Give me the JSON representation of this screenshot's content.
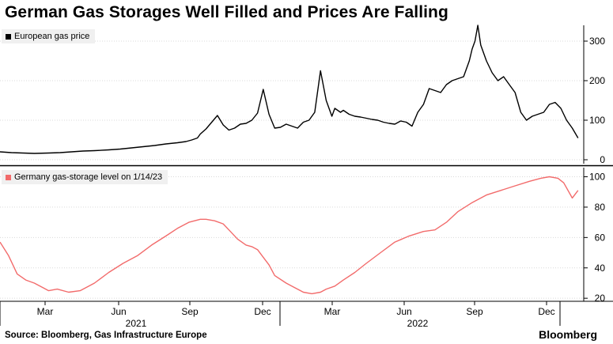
{
  "title": "German Gas Storages Well Filled and Prices Are Falling",
  "source": "Source: Bloomberg, Gas Infrastructure Europe",
  "brand": "Bloomberg",
  "colors": {
    "price_line": "#000000",
    "storage_line": "#f26b6b",
    "grid": "#d9d9d9"
  },
  "x_axis": {
    "months": [
      "Mar",
      "Jun",
      "Sep",
      "Dec",
      "Mar",
      "Jun",
      "Sep",
      "Dec"
    ],
    "years": [
      "2021",
      "2022"
    ]
  },
  "chart_data": [
    {
      "type": "line",
      "legend": "European gas price",
      "xlim": [
        2021.0,
        2023.04
      ],
      "ylim": [
        -10,
        340
      ],
      "yticks": [
        0,
        100,
        200,
        300
      ],
      "x": [
        2021.0,
        2021.04,
        2021.08,
        2021.12,
        2021.17,
        2021.21,
        2021.25,
        2021.29,
        2021.33,
        2021.38,
        2021.42,
        2021.46,
        2021.5,
        2021.54,
        2021.58,
        2021.62,
        2021.65,
        2021.67,
        2021.69,
        2021.7,
        2021.72,
        2021.74,
        2021.76,
        2021.78,
        2021.8,
        2021.82,
        2021.84,
        2021.86,
        2021.88,
        2021.9,
        2021.92,
        2021.94,
        2021.96,
        2021.98,
        2022.0,
        2022.02,
        2022.04,
        2022.06,
        2022.08,
        2022.1,
        2022.12,
        2022.14,
        2022.16,
        2022.17,
        2022.18,
        2022.19,
        2022.2,
        2022.22,
        2022.24,
        2022.26,
        2022.28,
        2022.3,
        2022.32,
        2022.34,
        2022.36,
        2022.38,
        2022.4,
        2022.42,
        2022.44,
        2022.46,
        2022.47,
        2022.48,
        2022.5,
        2022.52,
        2022.54,
        2022.56,
        2022.58,
        2022.6,
        2022.62,
        2022.64,
        2022.65,
        2022.66,
        2022.67,
        2022.68,
        2022.7,
        2022.72,
        2022.74,
        2022.76,
        2022.78,
        2022.8,
        2022.82,
        2022.84,
        2022.86,
        2022.88,
        2022.9,
        2022.92,
        2022.94,
        2022.96,
        2022.98,
        2023.0,
        2023.02
      ],
      "y": [
        20,
        18,
        17,
        16,
        17,
        18,
        20,
        22,
        23,
        25,
        27,
        30,
        33,
        36,
        40,
        43,
        46,
        50,
        55,
        65,
        78,
        95,
        112,
        88,
        75,
        80,
        90,
        92,
        100,
        118,
        178,
        115,
        80,
        82,
        90,
        85,
        80,
        95,
        100,
        120,
        225,
        150,
        110,
        130,
        125,
        120,
        125,
        115,
        110,
        108,
        105,
        102,
        100,
        95,
        92,
        90,
        98,
        95,
        85,
        120,
        130,
        140,
        180,
        175,
        170,
        190,
        200,
        205,
        210,
        250,
        280,
        300,
        340,
        290,
        250,
        220,
        200,
        210,
        190,
        170,
        120,
        100,
        110,
        115,
        120,
        140,
        145,
        130,
        100,
        80,
        55
      ]
    },
    {
      "type": "line",
      "legend": "Germany gas-storage level on 1/14/23",
      "xlim": [
        2021.0,
        2023.04
      ],
      "ylim": [
        18,
        106
      ],
      "yticks": [
        20,
        40,
        60,
        80,
        100
      ],
      "x": [
        2021.0,
        2021.03,
        2021.06,
        2021.09,
        2021.12,
        2021.15,
        2021.17,
        2021.2,
        2021.24,
        2021.28,
        2021.33,
        2021.38,
        2021.43,
        2021.48,
        2021.53,
        2021.58,
        2021.62,
        2021.66,
        2021.7,
        2021.72,
        2021.75,
        2021.78,
        2021.8,
        2021.83,
        2021.86,
        2021.88,
        2021.9,
        2021.92,
        2021.94,
        2021.96,
        2022.0,
        2022.03,
        2022.06,
        2022.09,
        2022.12,
        2022.14,
        2022.17,
        2022.2,
        2022.24,
        2022.28,
        2022.33,
        2022.38,
        2022.43,
        2022.48,
        2022.52,
        2022.56,
        2022.6,
        2022.65,
        2022.7,
        2022.75,
        2022.8,
        2022.85,
        2022.89,
        2022.92,
        2022.95,
        2022.97,
        2023.0,
        2023.02
      ],
      "y": [
        57,
        48,
        36,
        32,
        30,
        27,
        25,
        26,
        24,
        25,
        30,
        37,
        43,
        48,
        55,
        61,
        66,
        70,
        72,
        72,
        71,
        69,
        65,
        59,
        55,
        54,
        52,
        47,
        42,
        35,
        30,
        27,
        24,
        23,
        24,
        26,
        28,
        32,
        37,
        43,
        50,
        57,
        61,
        64,
        65,
        70,
        77,
        83,
        88,
        91,
        94,
        97,
        99,
        100,
        99,
        96,
        86,
        91
      ]
    }
  ]
}
